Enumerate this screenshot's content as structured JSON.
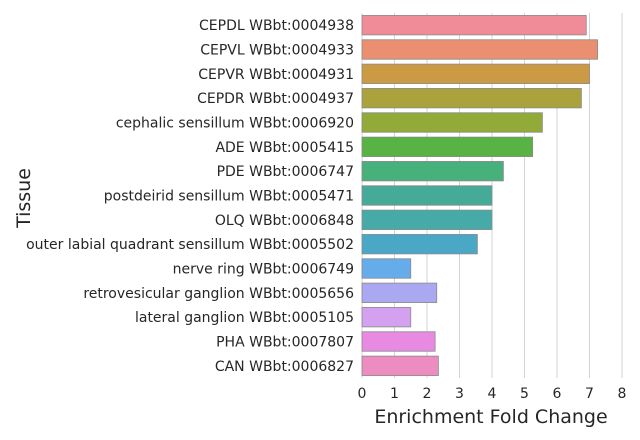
{
  "chart_data": {
    "type": "bar",
    "orientation": "horizontal",
    "title": "",
    "xlabel": "Enrichment Fold Change",
    "ylabel": "Tissue",
    "xlim": [
      0,
      8
    ],
    "xticks": [
      "0",
      "1",
      "2",
      "3",
      "4",
      "5",
      "6",
      "7",
      "8"
    ],
    "grid": "vertical",
    "categories": [
      "CEPDL WBbt:0004938",
      "CEPVL WBbt:0004933",
      "CEPVR WBbt:0004931",
      "CEPDR WBbt:0004937",
      "cephalic sensillum WBbt:0006920",
      "ADE WBbt:0005415",
      "PDE WBbt:0006747",
      "postdeirid sensillum WBbt:0005471",
      "OLQ WBbt:0006848",
      "outer labial quadrant sensillum WBbt:0005502",
      "nerve ring WBbt:0006749",
      "retrovesicular ganglion WBbt:0005656",
      "lateral ganglion WBbt:0005105",
      "PHA WBbt:0007807",
      "CAN WBbt:0006827"
    ],
    "values": [
      6.9,
      7.25,
      7.0,
      6.75,
      5.55,
      5.25,
      4.35,
      4.0,
      4.0,
      3.55,
      1.5,
      2.3,
      1.5,
      2.25,
      2.35
    ],
    "colors": [
      "#f08c98",
      "#ea9070",
      "#cc9a44",
      "#aaa23c",
      "#92aa38",
      "#58b244",
      "#48b07a",
      "#46aa98",
      "#46aaa8",
      "#4aa8c6",
      "#66acea",
      "#aaa8f0",
      "#d4a0f0",
      "#e88ae2",
      "#ec8cc0"
    ]
  }
}
